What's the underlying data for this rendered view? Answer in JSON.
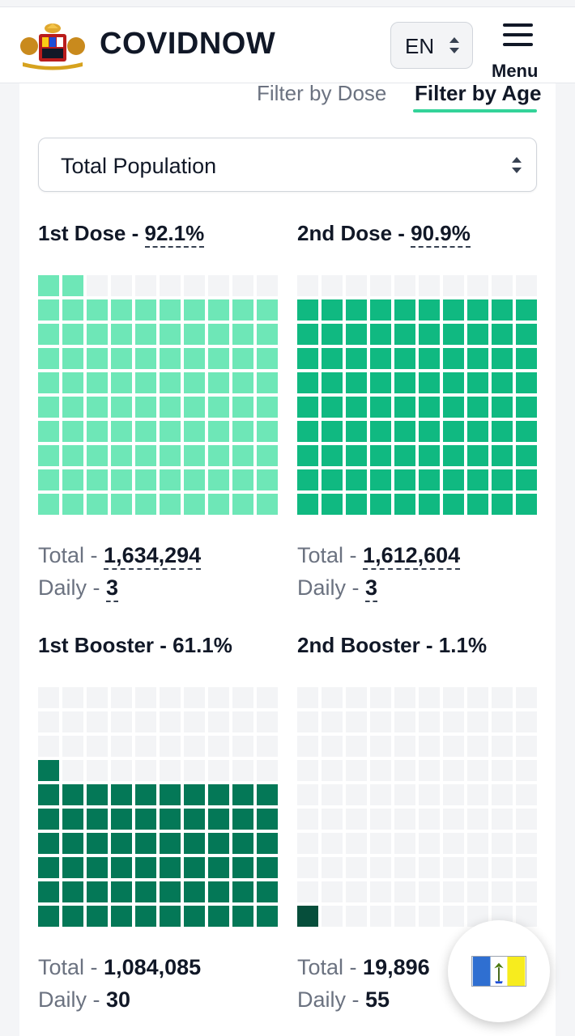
{
  "header": {
    "brand": "COVIDNOW",
    "language": "EN",
    "menu_label": "Menu"
  },
  "filters": {
    "dose_label": "Filter by Dose",
    "age_label": "Filter by Age",
    "active": "age"
  },
  "select": {
    "value": "Total Population"
  },
  "labels": {
    "total": "Total",
    "daily": "Daily",
    "sep": " - "
  },
  "panels": [
    {
      "title": "1st Dose",
      "percent": "92.1%",
      "total": "1,634,294",
      "daily": "3",
      "filled_cells": 92,
      "color": "#6ee7b7"
    },
    {
      "title": "2nd Dose",
      "percent": "90.9%",
      "total": "1,612,604",
      "daily": "3",
      "filled_cells": 90,
      "color": "#10b981"
    },
    {
      "title": "1st Booster",
      "percent": "61.1%",
      "total": "1,084,085",
      "daily": "30",
      "filled_cells": 61,
      "color": "#047857"
    },
    {
      "title": "2nd Booster",
      "percent": "1.1%",
      "total": "19,896",
      "daily": "55",
      "filled_cells": 1,
      "color": "#064e3b"
    }
  ],
  "empty_cell_color": "#f3f4f6",
  "icons": {
    "logo": "malaysia-coat-of-arms-icon",
    "lang": "sort-arrows-icon",
    "menu": "hamburger-menu-icon",
    "flag": "penang-flag-icon"
  }
}
